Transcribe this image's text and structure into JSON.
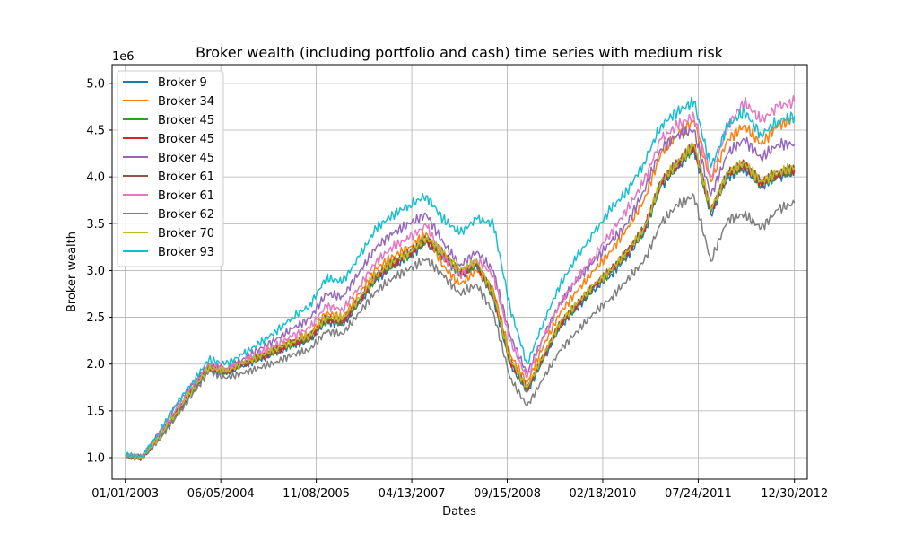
{
  "chart_data": {
    "type": "line",
    "title": "Broker wealth (including portfolio and cash) time series with medium risk",
    "xlabel": "Dates",
    "ylabel": "Broker wealth",
    "y_offset_label": "1e6",
    "x_axis_type": "date",
    "xlim": [
      "2002-10-21",
      "2013-03-10"
    ],
    "ylim": [
      0.77,
      5.2
    ],
    "x_ticks": [
      {
        "date": "2003-01-01",
        "label": "01/01/2003"
      },
      {
        "date": "2004-06-05",
        "label": "06/05/2004"
      },
      {
        "date": "2005-11-08",
        "label": "11/08/2005"
      },
      {
        "date": "2007-04-13",
        "label": "04/13/2007"
      },
      {
        "date": "2008-09-15",
        "label": "09/15/2008"
      },
      {
        "date": "2010-02-18",
        "label": "02/18/2010"
      },
      {
        "date": "2011-07-24",
        "label": "07/24/2011"
      },
      {
        "date": "2012-12-30",
        "label": "12/30/2012"
      }
    ],
    "y_ticks": [
      "1.0",
      "1.5",
      "2.0",
      "2.5",
      "3.0",
      "3.5",
      "4.0",
      "4.5",
      "5.0"
    ],
    "grid": true,
    "legend_position": "top-left",
    "x": [
      "2003-01-01",
      "2003-04-01",
      "2003-07-01",
      "2003-10-01",
      "2004-01-01",
      "2004-04-01",
      "2004-07-01",
      "2004-10-01",
      "2005-01-01",
      "2005-04-01",
      "2005-07-01",
      "2005-10-01",
      "2006-01-01",
      "2006-04-01",
      "2006-07-01",
      "2006-10-01",
      "2007-01-01",
      "2007-04-01",
      "2007-07-01",
      "2007-10-01",
      "2008-01-01",
      "2008-04-01",
      "2008-07-01",
      "2008-10-01",
      "2009-01-01",
      "2009-04-01",
      "2009-07-01",
      "2009-10-01",
      "2010-01-01",
      "2010-04-01",
      "2010-07-01",
      "2010-10-01",
      "2011-01-01",
      "2011-04-01",
      "2011-07-01",
      "2011-10-01",
      "2012-01-01",
      "2012-04-01",
      "2012-07-01",
      "2012-10-01",
      "2012-12-30"
    ],
    "series": [
      {
        "name": "Broker 9",
        "color": "#1f77b4",
        "values": [
          1.02,
          1.0,
          1.2,
          1.45,
          1.7,
          1.95,
          1.9,
          1.98,
          2.05,
          2.12,
          2.2,
          2.25,
          2.45,
          2.42,
          2.65,
          2.9,
          3.05,
          3.15,
          3.3,
          3.15,
          2.95,
          3.05,
          2.7,
          2.0,
          1.7,
          2.05,
          2.4,
          2.6,
          2.8,
          2.95,
          3.15,
          3.4,
          3.9,
          4.1,
          4.3,
          3.6,
          4.0,
          4.1,
          3.9,
          4.0,
          4.05
        ]
      },
      {
        "name": "Broker 34",
        "color": "#ff7f0e",
        "values": [
          1.02,
          1.01,
          1.22,
          1.48,
          1.73,
          1.98,
          1.93,
          2.01,
          2.09,
          2.17,
          2.26,
          2.32,
          2.55,
          2.5,
          2.75,
          3.02,
          3.15,
          3.25,
          3.4,
          3.05,
          2.85,
          3.0,
          2.8,
          2.1,
          1.8,
          2.2,
          2.55,
          2.78,
          3.0,
          3.2,
          3.45,
          3.75,
          4.25,
          4.45,
          4.6,
          3.95,
          4.4,
          4.55,
          4.35,
          4.55,
          4.62
        ]
      },
      {
        "name": "Broker 45",
        "color": "#2ca02c",
        "values": [
          1.02,
          1.0,
          1.2,
          1.46,
          1.71,
          1.96,
          1.91,
          1.99,
          2.06,
          2.13,
          2.21,
          2.27,
          2.47,
          2.44,
          2.67,
          2.92,
          3.07,
          3.17,
          3.32,
          3.16,
          2.96,
          3.06,
          2.72,
          2.02,
          1.72,
          2.07,
          2.42,
          2.62,
          2.82,
          2.98,
          3.18,
          3.43,
          3.93,
          4.13,
          4.32,
          3.62,
          4.02,
          4.12,
          3.92,
          4.02,
          4.07
        ]
      },
      {
        "name": "Broker 45",
        "color": "#d62728",
        "values": [
          1.02,
          1.0,
          1.21,
          1.46,
          1.72,
          1.97,
          1.92,
          2.0,
          2.07,
          2.14,
          2.22,
          2.28,
          2.48,
          2.45,
          2.68,
          2.93,
          3.08,
          3.18,
          3.33,
          3.17,
          2.97,
          3.07,
          2.73,
          2.03,
          1.73,
          2.08,
          2.43,
          2.63,
          2.83,
          2.99,
          3.19,
          3.44,
          3.94,
          4.14,
          4.33,
          3.63,
          4.03,
          4.13,
          3.93,
          4.03,
          4.08
        ]
      },
      {
        "name": "Broker 45",
        "color": "#9467bd",
        "values": [
          1.03,
          1.01,
          1.25,
          1.55,
          1.78,
          2.0,
          1.95,
          2.05,
          2.16,
          2.26,
          2.38,
          2.48,
          2.75,
          2.72,
          2.98,
          3.25,
          3.4,
          3.5,
          3.6,
          3.3,
          3.05,
          3.2,
          3.0,
          2.3,
          1.9,
          2.3,
          2.65,
          2.9,
          3.1,
          3.3,
          3.5,
          3.85,
          4.3,
          4.45,
          4.5,
          3.8,
          4.25,
          4.4,
          4.2,
          4.35,
          4.35
        ]
      },
      {
        "name": "Broker 61",
        "color": "#8c564b",
        "values": [
          1.02,
          1.0,
          1.21,
          1.47,
          1.72,
          1.97,
          1.92,
          2.0,
          2.08,
          2.15,
          2.23,
          2.29,
          2.49,
          2.46,
          2.69,
          2.94,
          3.09,
          3.19,
          3.34,
          3.18,
          2.98,
          3.08,
          2.74,
          2.04,
          1.74,
          2.09,
          2.44,
          2.64,
          2.84,
          3.0,
          3.2,
          3.45,
          3.95,
          4.15,
          4.34,
          3.64,
          4.04,
          4.14,
          3.94,
          4.04,
          4.09
        ]
      },
      {
        "name": "Broker 61",
        "color": "#e377c2",
        "values": [
          1.02,
          1.01,
          1.23,
          1.5,
          1.75,
          1.99,
          1.94,
          2.03,
          2.12,
          2.2,
          2.3,
          2.38,
          2.62,
          2.58,
          2.83,
          3.1,
          3.25,
          3.35,
          3.48,
          3.15,
          2.95,
          3.12,
          2.95,
          2.25,
          1.85,
          2.28,
          2.65,
          2.92,
          3.15,
          3.4,
          3.65,
          3.95,
          4.4,
          4.55,
          4.65,
          4.0,
          4.55,
          4.8,
          4.6,
          4.75,
          4.8
        ]
      },
      {
        "name": "Broker 62",
        "color": "#7f7f7f",
        "values": [
          1.01,
          0.99,
          1.18,
          1.42,
          1.67,
          1.92,
          1.85,
          1.9,
          1.96,
          2.02,
          2.1,
          2.15,
          2.35,
          2.32,
          2.55,
          2.78,
          2.92,
          3.02,
          3.12,
          2.95,
          2.75,
          2.85,
          2.55,
          1.85,
          1.55,
          1.85,
          2.15,
          2.35,
          2.55,
          2.7,
          2.9,
          3.1,
          3.5,
          3.7,
          3.8,
          3.1,
          3.55,
          3.6,
          3.45,
          3.65,
          3.72
        ]
      },
      {
        "name": "Broker 70",
        "color": "#bcbd22",
        "values": [
          1.02,
          1.0,
          1.21,
          1.47,
          1.72,
          1.96,
          1.92,
          2.0,
          2.08,
          2.16,
          2.24,
          2.3,
          2.5,
          2.48,
          2.7,
          2.95,
          3.1,
          3.2,
          3.35,
          3.2,
          3.0,
          3.1,
          2.75,
          2.05,
          1.75,
          2.1,
          2.45,
          2.65,
          2.85,
          3.0,
          3.2,
          3.45,
          3.95,
          4.15,
          4.35,
          3.65,
          4.05,
          4.15,
          3.95,
          4.05,
          4.1
        ]
      },
      {
        "name": "Broker 93",
        "color": "#17becf",
        "values": [
          1.03,
          1.01,
          1.26,
          1.56,
          1.8,
          2.05,
          2.0,
          2.1,
          2.22,
          2.35,
          2.5,
          2.62,
          2.92,
          2.88,
          3.15,
          3.45,
          3.6,
          3.7,
          3.8,
          3.55,
          3.4,
          3.55,
          3.5,
          2.6,
          2.0,
          2.45,
          2.85,
          3.15,
          3.4,
          3.65,
          3.85,
          4.15,
          4.55,
          4.7,
          4.8,
          4.1,
          4.55,
          4.7,
          4.45,
          4.6,
          4.65
        ]
      }
    ]
  }
}
